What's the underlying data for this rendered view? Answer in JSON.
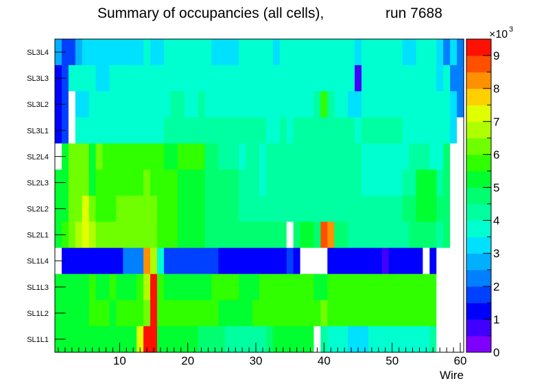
{
  "chart_data": {
    "type": "heatmap",
    "title_main": "Summary of occupancies (all cells),",
    "title_run": "run 7688",
    "xlabel": "Wire",
    "x_ticks": [
      "10",
      "20",
      "30",
      "40",
      "50",
      "60"
    ],
    "x_tick_values": [
      10,
      20,
      30,
      40,
      50,
      60
    ],
    "xlim": [
      0.5,
      60.5
    ],
    "zlim": [
      0,
      9.5
    ],
    "z_unit_multiplier": "×10",
    "z_unit_exponent": "3",
    "z_ticks": [
      "0",
      "1",
      "2",
      "3",
      "4",
      "5",
      "6",
      "7",
      "8",
      "9"
    ],
    "z_tick_values": [
      0,
      1,
      2,
      3,
      4,
      5,
      6,
      7,
      8,
      9
    ],
    "palette": [
      "#7f00ff",
      "#4000ff",
      "#0000ff",
      "#0040ff",
      "#0080ff",
      "#00b0ff",
      "#00e0ff",
      "#00ffd0",
      "#00ffa0",
      "#00ff70",
      "#00ff30",
      "#30ff00",
      "#70ff00",
      "#b0ff00",
      "#e0ff00",
      "#ffd000",
      "#ff9000",
      "#ff5000",
      "#ff1000"
    ],
    "row_labels": [
      "SL3L4",
      "SL3L3",
      "SL3L2",
      "SL3L1",
      "SL2L4",
      "SL2L3",
      "SL2L2",
      "SL2L1",
      "SL1L4",
      "SL1L3",
      "SL1L2",
      "SL1L1"
    ],
    "rows": [
      {
        "label": "SL3L4",
        "segments": [
          [
            1,
            1,
            2.8
          ],
          [
            2,
            3,
            1.9
          ],
          [
            4,
            4,
            2.9
          ],
          [
            5,
            13,
            3.4
          ],
          [
            14,
            14,
            3.8
          ],
          [
            15,
            16,
            3.4
          ],
          [
            17,
            23,
            3.8
          ],
          [
            24,
            27,
            3.4
          ],
          [
            28,
            32,
            3.8
          ],
          [
            33,
            33,
            3.4
          ],
          [
            34,
            44,
            3.8
          ],
          [
            45,
            45,
            3.4
          ],
          [
            46,
            51,
            3.8
          ],
          [
            52,
            53,
            3.4
          ],
          [
            54,
            56,
            3.8
          ],
          [
            57,
            57,
            3.2
          ],
          [
            58,
            58,
            2.4
          ],
          [
            59,
            59,
            3.2
          ],
          [
            60,
            60,
            2.4
          ]
        ]
      },
      {
        "label": "SL3L3",
        "segments": [
          [
            1,
            1,
            1.3
          ],
          [
            2,
            2,
            1.9
          ],
          [
            3,
            4,
            3.6
          ],
          [
            5,
            6,
            3.9
          ],
          [
            7,
            8,
            3.4
          ],
          [
            9,
            45,
            3.8
          ],
          [
            45,
            45,
            0.9
          ],
          [
            46,
            56,
            3.8
          ],
          [
            57,
            57,
            3.4
          ],
          [
            58,
            58,
            3.8
          ],
          [
            59,
            60,
            2.4
          ]
        ]
      },
      {
        "label": "SL3L2",
        "segments": [
          [
            1,
            1,
            1.3
          ],
          [
            2,
            2,
            1.9
          ],
          [
            3,
            3,
            -1
          ],
          [
            4,
            4,
            3.1
          ],
          [
            5,
            5,
            3.4
          ],
          [
            6,
            17,
            3.8
          ],
          [
            18,
            19,
            4.1
          ],
          [
            20,
            21,
            3.8
          ],
          [
            22,
            22,
            4.1
          ],
          [
            23,
            38,
            3.8
          ],
          [
            39,
            39,
            4.1
          ],
          [
            40,
            40,
            5.8
          ],
          [
            41,
            41,
            4.1
          ],
          [
            42,
            43,
            3.8
          ],
          [
            44,
            45,
            3.4
          ],
          [
            46,
            58,
            3.8
          ],
          [
            59,
            59,
            3.4
          ],
          [
            60,
            60,
            2.4
          ]
        ]
      },
      {
        "label": "SL3L1",
        "segments": [
          [
            1,
            1,
            1.3
          ],
          [
            2,
            2,
            1.9
          ],
          [
            3,
            3,
            -1
          ],
          [
            4,
            16,
            3.8
          ],
          [
            17,
            22,
            4.1
          ],
          [
            23,
            30,
            4.0
          ],
          [
            31,
            31,
            4.1
          ],
          [
            32,
            33,
            3.8
          ],
          [
            34,
            34,
            4.2
          ],
          [
            35,
            35,
            3.8
          ],
          [
            36,
            44,
            4.1
          ],
          [
            45,
            45,
            3.8
          ],
          [
            46,
            51,
            4.3
          ],
          [
            52,
            58,
            3.8
          ],
          [
            59,
            59,
            3.4
          ],
          [
            60,
            60,
            -1
          ]
        ]
      },
      {
        "label": "SL2L4",
        "segments": [
          [
            1,
            1,
            -1
          ],
          [
            2,
            2,
            5.4
          ],
          [
            3,
            5,
            6.0
          ],
          [
            6,
            6,
            5.4
          ],
          [
            7,
            7,
            6.0
          ],
          [
            8,
            16,
            5.6
          ],
          [
            17,
            18,
            5.0
          ],
          [
            19,
            22,
            5.6
          ],
          [
            23,
            24,
            4.6
          ],
          [
            25,
            27,
            4.2
          ],
          [
            28,
            28,
            3.8
          ],
          [
            29,
            30,
            4.2
          ],
          [
            31,
            31,
            3.8
          ],
          [
            32,
            45,
            4.2
          ],
          [
            46,
            52,
            3.6
          ],
          [
            53,
            55,
            4.4
          ],
          [
            56,
            57,
            3.8
          ],
          [
            58,
            58,
            4.5
          ],
          [
            59,
            60,
            -1
          ]
        ]
      },
      {
        "label": "SL2L3",
        "segments": [
          [
            1,
            1,
            5.0
          ],
          [
            2,
            2,
            5.4
          ],
          [
            3,
            5,
            6.0
          ],
          [
            6,
            6,
            5.4
          ],
          [
            7,
            13,
            5.6
          ],
          [
            14,
            14,
            6.0
          ],
          [
            15,
            18,
            5.6
          ],
          [
            19,
            22,
            5.0
          ],
          [
            23,
            27,
            4.6
          ],
          [
            28,
            30,
            4.2
          ],
          [
            31,
            31,
            3.8
          ],
          [
            32,
            45,
            4.2
          ],
          [
            46,
            51,
            3.6
          ],
          [
            52,
            53,
            4.4
          ],
          [
            54,
            56,
            5.2
          ],
          [
            57,
            57,
            4.2
          ],
          [
            58,
            58,
            4.5
          ],
          [
            59,
            60,
            -1
          ]
        ]
      },
      {
        "label": "SL2L2",
        "segments": [
          [
            1,
            1,
            5.0
          ],
          [
            2,
            2,
            5.4
          ],
          [
            3,
            3,
            6.0
          ],
          [
            4,
            4,
            6.4
          ],
          [
            5,
            5,
            7.2
          ],
          [
            6,
            6,
            6.4
          ],
          [
            7,
            9,
            5.6
          ],
          [
            10,
            15,
            6.2
          ],
          [
            16,
            18,
            5.6
          ],
          [
            19,
            22,
            5.0
          ],
          [
            23,
            27,
            4.6
          ],
          [
            28,
            30,
            4.2
          ],
          [
            31,
            45,
            4.2
          ],
          [
            46,
            51,
            4.3
          ],
          [
            52,
            53,
            4.5
          ],
          [
            54,
            56,
            5.4
          ],
          [
            57,
            57,
            4.6
          ],
          [
            58,
            58,
            4.6
          ],
          [
            59,
            60,
            -1
          ]
        ]
      },
      {
        "label": "SL2L1",
        "segments": [
          [
            1,
            1,
            5.4
          ],
          [
            2,
            2,
            5.6
          ],
          [
            3,
            3,
            6.2
          ],
          [
            4,
            4,
            6.6
          ],
          [
            5,
            5,
            7.4
          ],
          [
            6,
            6,
            6.6
          ],
          [
            7,
            15,
            6.2
          ],
          [
            16,
            18,
            5.6
          ],
          [
            19,
            22,
            5.0
          ],
          [
            23,
            34,
            4.6
          ],
          [
            35,
            35,
            -1
          ],
          [
            36,
            36,
            4.6
          ],
          [
            37,
            38,
            5.0
          ],
          [
            39,
            39,
            4.6
          ],
          [
            40,
            40,
            8.8
          ],
          [
            41,
            41,
            8.2
          ],
          [
            42,
            43,
            4.6
          ],
          [
            44,
            49,
            4.2
          ],
          [
            50,
            52,
            4.2
          ],
          [
            53,
            56,
            4.6
          ],
          [
            57,
            57,
            4.3
          ],
          [
            58,
            58,
            4.6
          ],
          [
            59,
            60,
            -1
          ]
        ]
      },
      {
        "label": "SL1L4",
        "segments": [
          [
            1,
            1,
            -1
          ],
          [
            2,
            10,
            1.4
          ],
          [
            11,
            13,
            2.2
          ],
          [
            14,
            14,
            8.4
          ],
          [
            15,
            15,
            6.8
          ],
          [
            16,
            16,
            3.6
          ],
          [
            17,
            24,
            1.6
          ],
          [
            25,
            34,
            1.1
          ],
          [
            35,
            35,
            1.8
          ],
          [
            36,
            36,
            1.4
          ],
          [
            37,
            40,
            -1
          ],
          [
            41,
            48,
            1.1
          ],
          [
            49,
            49,
            0.9
          ],
          [
            50,
            54,
            1.2
          ],
          [
            55,
            55,
            -1
          ],
          [
            56,
            56,
            1.2
          ],
          [
            57,
            60,
            -1
          ]
        ]
      },
      {
        "label": "SL1L3",
        "segments": [
          [
            1,
            1,
            5.0
          ],
          [
            2,
            5,
            5.2
          ],
          [
            6,
            6,
            5.6
          ],
          [
            7,
            8,
            5.2
          ],
          [
            9,
            9,
            5.6
          ],
          [
            10,
            12,
            5.2
          ],
          [
            13,
            13,
            5.6
          ],
          [
            14,
            14,
            6.5
          ],
          [
            15,
            15,
            9.0
          ],
          [
            16,
            16,
            5.6
          ],
          [
            17,
            23,
            5.4
          ],
          [
            24,
            27,
            5.6
          ],
          [
            28,
            30,
            5.0
          ],
          [
            31,
            33,
            5.6
          ],
          [
            34,
            38,
            5.6
          ],
          [
            39,
            40,
            5.0
          ],
          [
            41,
            48,
            5.6
          ],
          [
            49,
            52,
            5.6
          ],
          [
            53,
            56,
            5.6
          ],
          [
            57,
            60,
            -1
          ]
        ]
      },
      {
        "label": "SL1L2",
        "segments": [
          [
            1,
            1,
            5.4
          ],
          [
            2,
            2,
            5.0
          ],
          [
            3,
            5,
            5.2
          ],
          [
            6,
            8,
            5.6
          ],
          [
            9,
            9,
            5.2
          ],
          [
            10,
            13,
            5.6
          ],
          [
            14,
            14,
            6.0
          ],
          [
            15,
            15,
            9.2
          ],
          [
            16,
            16,
            5.6
          ],
          [
            17,
            18,
            5.6
          ],
          [
            19,
            24,
            5.8
          ],
          [
            25,
            26,
            5.4
          ],
          [
            27,
            27,
            5.0
          ],
          [
            28,
            29,
            5.4
          ],
          [
            30,
            30,
            5.8
          ],
          [
            31,
            38,
            5.6
          ],
          [
            39,
            39,
            5.8
          ],
          [
            40,
            40,
            6.1
          ],
          [
            41,
            48,
            5.6
          ],
          [
            49,
            49,
            5.8
          ],
          [
            50,
            56,
            5.6
          ],
          [
            57,
            60,
            -1
          ]
        ]
      },
      {
        "label": "SL1L1",
        "segments": [
          [
            1,
            1,
            5.2
          ],
          [
            2,
            4,
            5.0
          ],
          [
            5,
            10,
            5.2
          ],
          [
            11,
            11,
            5.4
          ],
          [
            12,
            12,
            5.2
          ],
          [
            13,
            13,
            7.2
          ],
          [
            14,
            15,
            9.2
          ],
          [
            16,
            16,
            5.4
          ],
          [
            17,
            21,
            5.0
          ],
          [
            22,
            22,
            4.8
          ],
          [
            23,
            25,
            4.6
          ],
          [
            26,
            31,
            4.2
          ],
          [
            32,
            32,
            4.6
          ],
          [
            33,
            38,
            5.4
          ],
          [
            39,
            39,
            -1
          ],
          [
            40,
            40,
            4.0
          ],
          [
            41,
            43,
            3.5
          ],
          [
            44,
            46,
            3.4
          ],
          [
            47,
            55,
            3.5
          ],
          [
            56,
            56,
            4.0
          ],
          [
            57,
            60,
            -1
          ]
        ]
      }
    ]
  }
}
